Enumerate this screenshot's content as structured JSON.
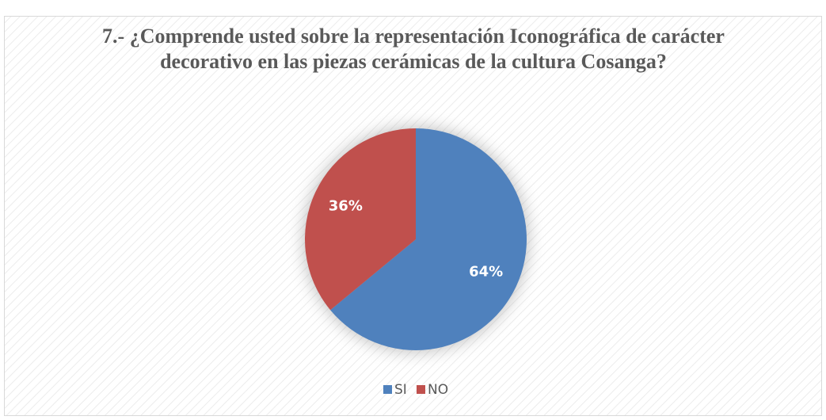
{
  "chart_data": {
    "type": "pie",
    "title": "7.- ¿Comprende usted sobre la representación Iconográfica de carácter decorativo en las piezas cerámicas de la cultura Cosanga?",
    "categories": [
      "SI",
      "NO"
    ],
    "values": [
      64,
      36
    ],
    "value_labels": [
      "64%",
      "36%"
    ],
    "colors": [
      "#4f81bd",
      "#c0504d"
    ],
    "legend": "bottom"
  }
}
